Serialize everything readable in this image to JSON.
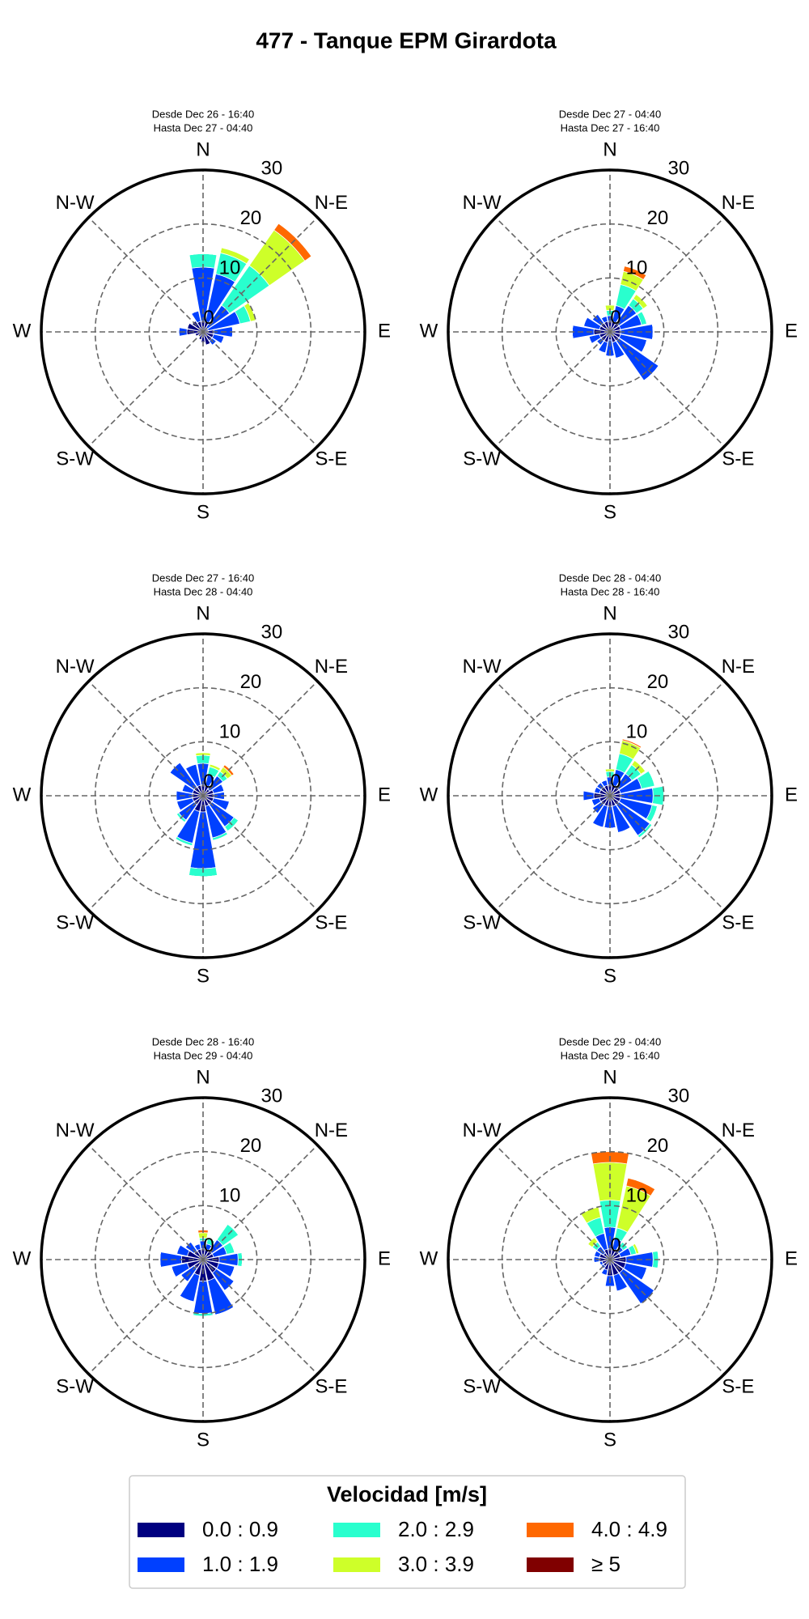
{
  "title": "477 - Tanque EPM Girardota",
  "legend": {
    "title": "Velocidad [m/s]",
    "items": [
      {
        "name": "0.0 : 0.9",
        "color": "#000080"
      },
      {
        "name": "1.0 : 1.9",
        "color": "#0040ff"
      },
      {
        "name": "2.0 : 2.9",
        "color": "#29ffce"
      },
      {
        "name": "3.0 : 3.9",
        "color": "#ceff29"
      },
      {
        "name": "4.0 : 4.9",
        "color": "#ff6800"
      },
      {
        "name": "≥ 5",
        "color": "#800000"
      }
    ]
  },
  "chart_data": [
    {
      "type": "windrose",
      "title": "Desde Dec 26 - 16:40",
      "subtitle": "Hasta Dec 27 - 04:40",
      "categories": [
        "N",
        null,
        "N-E",
        null,
        "E",
        null,
        "S-E",
        null,
        "S",
        null,
        "S-W",
        null,
        "W",
        null,
        "N-W",
        null
      ],
      "rlim": [
        0,
        30
      ],
      "rticks": [
        0,
        10,
        20,
        30
      ],
      "series": [
        {
          "values": [
            2,
            2,
            1,
            1,
            2,
            2,
            2,
            2.5,
            2,
            1.5,
            1,
            1.5,
            3,
            3,
            2.5,
            2
          ]
        },
        {
          "values": [
            10,
            9,
            5,
            6,
            3.5,
            2,
            1,
            0,
            0,
            0,
            0,
            0,
            1.5,
            0,
            0,
            2
          ]
        },
        {
          "values": [
            2.5,
            4,
            9,
            2,
            0,
            0,
            0,
            0,
            0,
            0,
            0,
            0,
            0,
            0,
            0,
            0
          ]
        },
        {
          "values": [
            0,
            1,
            8,
            1,
            0,
            0,
            0,
            0,
            0,
            0,
            0,
            0,
            0,
            0,
            0,
            0
          ]
        },
        {
          "values": [
            0,
            0,
            1.5,
            0,
            0,
            0,
            0,
            0,
            0,
            0,
            0,
            0,
            0,
            0,
            0,
            0
          ]
        },
        {
          "values": [
            0,
            0,
            0,
            0,
            0,
            0,
            0,
            0,
            0,
            0,
            0,
            0,
            0,
            0,
            0,
            0
          ]
        }
      ]
    },
    {
      "type": "windrose",
      "title": "Desde Dec 27 - 04:40",
      "subtitle": "Hasta Dec 27 - 16:40",
      "categories": [
        "N",
        null,
        "N-E",
        null,
        "E",
        null,
        "S-E",
        null,
        "S",
        null,
        "S-W",
        null,
        "W",
        null,
        "N-W",
        null
      ],
      "rlim": [
        0,
        30
      ],
      "rticks": [
        0,
        10,
        20,
        30
      ],
      "series": [
        {
          "values": [
            2,
            2,
            2,
            2,
            2,
            2,
            2,
            2,
            1.5,
            2,
            2,
            2,
            3,
            2,
            2,
            2
          ]
        },
        {
          "values": [
            1,
            3,
            4,
            4,
            6,
            5,
            9,
            3,
            3,
            2,
            1,
            2,
            4,
            3,
            2,
            1
          ]
        },
        {
          "values": [
            1,
            4,
            1.5,
            1,
            0,
            0,
            0,
            0,
            0,
            0,
            0,
            0,
            0,
            0,
            0,
            0
          ]
        },
        {
          "values": [
            1,
            2.5,
            1,
            0,
            0,
            0,
            0,
            0,
            0,
            0,
            0,
            0,
            0,
            0,
            0,
            0
          ]
        },
        {
          "values": [
            0,
            1,
            0,
            0,
            0,
            0,
            0,
            0,
            0,
            0,
            0,
            0,
            0,
            0,
            0,
            0
          ]
        },
        {
          "values": [
            0,
            0,
            0,
            0,
            0,
            0,
            0,
            0,
            0,
            0,
            0,
            0,
            0,
            0,
            0,
            0
          ]
        }
      ]
    },
    {
      "type": "windrose",
      "title": "Desde Dec 27 - 16:40",
      "subtitle": "Hasta Dec 28 - 04:40",
      "categories": [
        "N",
        null,
        "N-E",
        null,
        "E",
        null,
        "S-E",
        null,
        "S",
        null,
        "S-W",
        null,
        "W",
        null,
        "N-W",
        null
      ],
      "rlim": [
        0,
        30
      ],
      "rticks": [
        0,
        10,
        20,
        30
      ],
      "series": [
        {
          "values": [
            2,
            2,
            1.5,
            2,
            2,
            2,
            2,
            2,
            3,
            3,
            2,
            2,
            2,
            2,
            2,
            2
          ]
        },
        {
          "values": [
            4,
            2,
            3,
            2,
            2,
            3,
            5,
            6,
            10.5,
            6,
            3.5,
            3,
            3,
            2,
            5.5,
            4
          ]
        },
        {
          "values": [
            1.5,
            1.5,
            1,
            0,
            0,
            0,
            1,
            0.5,
            1.5,
            0.5,
            0.5,
            0,
            0,
            0,
            0,
            0
          ]
        },
        {
          "values": [
            0.5,
            0.5,
            1,
            0,
            0,
            0,
            0,
            0,
            0,
            0,
            0,
            0,
            0,
            0,
            0,
            0
          ]
        },
        {
          "values": [
            0,
            0,
            0.5,
            0,
            0,
            0,
            0,
            0,
            0,
            0,
            0,
            0,
            0,
            0,
            0,
            0
          ]
        },
        {
          "values": [
            0,
            0,
            0,
            0,
            0,
            0,
            0,
            0,
            0,
            0,
            0,
            0,
            0,
            0,
            0,
            0
          ]
        }
      ]
    },
    {
      "type": "windrose",
      "title": "Desde Dec 28 - 04:40",
      "subtitle": "Hasta Dec 28 - 16:40",
      "categories": [
        "N",
        null,
        "N-E",
        null,
        "E",
        null,
        "S-E",
        null,
        "S",
        null,
        "S-W",
        null,
        "W",
        null,
        "N-W",
        null
      ],
      "rlim": [
        0,
        30
      ],
      "rticks": [
        0,
        10,
        20,
        30
      ],
      "series": [
        {
          "values": [
            2,
            2,
            2,
            2,
            2,
            2,
            2,
            2,
            2,
            2,
            2,
            2,
            3,
            2,
            2,
            2
          ]
        },
        {
          "values": [
            1.5,
            3,
            3,
            4,
            6,
            6,
            7,
            5,
            4,
            4,
            2,
            1.5,
            2,
            1,
            1,
            1
          ]
        },
        {
          "values": [
            1,
            3,
            2,
            2.5,
            2,
            1,
            0.5,
            0,
            0,
            0,
            0,
            0,
            0,
            0,
            0,
            0
          ]
        },
        {
          "values": [
            0.5,
            2.5,
            1,
            0,
            0,
            0,
            0,
            0,
            0,
            0,
            0,
            0,
            0,
            0,
            0,
            0
          ]
        },
        {
          "values": [
            0,
            0.3,
            0,
            0,
            0,
            0,
            0,
            0,
            0,
            0,
            0,
            0,
            0,
            0,
            0,
            0
          ]
        },
        {
          "values": [
            0,
            0,
            0,
            0,
            0,
            0,
            0,
            0,
            0,
            0,
            0,
            0,
            0,
            0,
            0,
            0
          ]
        }
      ]
    },
    {
      "type": "windrose",
      "title": "Desde Dec 28 - 16:40",
      "subtitle": "Hasta Dec 29 - 04:40",
      "categories": [
        "N",
        null,
        "N-E",
        null,
        "E",
        null,
        "S-E",
        null,
        "S",
        null,
        "S-W",
        null,
        "W",
        null,
        "N-W",
        null
      ],
      "rlim": [
        0,
        30
      ],
      "rticks": [
        0,
        10,
        20,
        30
      ],
      "series": [
        {
          "values": [
            2,
            2,
            2,
            2,
            3,
            3,
            3,
            4,
            4,
            3,
            2,
            3,
            4,
            3,
            2,
            2
          ]
        },
        {
          "values": [
            1.5,
            1,
            2.5,
            2.5,
            3.5,
            3,
            4,
            6.5,
            6,
            5,
            3,
            3,
            4,
            2,
            2,
            1
          ]
        },
        {
          "values": [
            0.5,
            1,
            3.5,
            1.5,
            0.8,
            0,
            0,
            0,
            0.5,
            0,
            0,
            0,
            0,
            0,
            0,
            0
          ]
        },
        {
          "values": [
            1,
            0,
            0,
            0,
            0,
            0,
            0,
            0,
            0,
            0,
            0,
            0,
            0,
            0,
            0,
            0
          ]
        },
        {
          "values": [
            0.5,
            0,
            0,
            0,
            0,
            0,
            0,
            0,
            0,
            0,
            0,
            0,
            0,
            0,
            0,
            0
          ]
        },
        {
          "values": [
            0,
            0,
            0,
            0,
            0,
            0,
            0,
            0,
            0,
            0,
            0,
            0,
            0,
            0,
            0,
            0
          ]
        }
      ]
    },
    {
      "type": "windrose",
      "title": "Desde Dec 29 - 04:40",
      "subtitle": "Hasta Dec 29 - 16:40",
      "categories": [
        "N",
        null,
        "N-E",
        null,
        "E",
        null,
        "S-E",
        null,
        "S",
        null,
        "S-W",
        null,
        "W",
        null,
        "N-W",
        null
      ],
      "rlim": [
        0,
        30
      ],
      "rticks": [
        0,
        10,
        20,
        30
      ],
      "series": [
        {
          "values": [
            2,
            2,
            2,
            2,
            3,
            3,
            3,
            3,
            3,
            2,
            1.5,
            1.5,
            2,
            2,
            1.5,
            2
          ]
        },
        {
          "values": [
            4,
            2,
            1,
            2,
            5,
            4,
            7,
            3,
            2,
            1,
            0.5,
            0.5,
            1,
            1,
            1.5,
            3
          ]
        },
        {
          "values": [
            5,
            2,
            1,
            1,
            1,
            0,
            0,
            0,
            0,
            0,
            0,
            0,
            0,
            0,
            1,
            3
          ]
        },
        {
          "values": [
            7,
            8,
            0,
            0.5,
            0,
            0,
            0,
            0,
            0,
            0,
            0,
            0,
            0,
            0,
            1,
            2
          ]
        },
        {
          "values": [
            2,
            1.5,
            0,
            0,
            0,
            0,
            0,
            0,
            0,
            0,
            0,
            0,
            0,
            0,
            0,
            0
          ]
        },
        {
          "values": [
            0,
            0,
            0,
            0,
            0,
            0,
            0,
            0,
            0,
            0,
            0,
            0,
            0,
            0,
            0,
            0
          ]
        }
      ]
    }
  ]
}
